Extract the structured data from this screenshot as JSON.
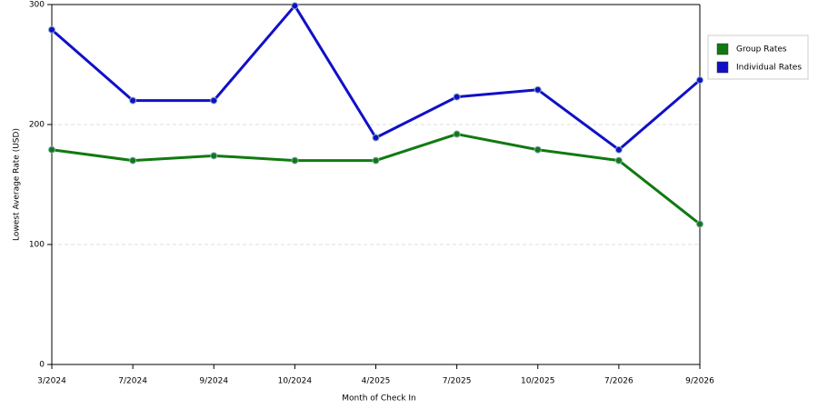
{
  "chart_data": {
    "type": "line",
    "x_label": "Month of Check In",
    "y_label": "Lowest Average Rate (USD)",
    "categories": [
      "3/2024",
      "7/2024",
      "9/2024",
      "10/2024",
      "4/2025",
      "7/2025",
      "10/2025",
      "7/2026",
      "9/2026"
    ],
    "series": [
      {
        "name": "Group Rates",
        "color": "#107a10",
        "values": [
          179,
          170,
          174,
          170,
          170,
          192,
          179,
          170,
          117
        ]
      },
      {
        "name": "Individual Rates",
        "color": "#1010c8",
        "values": [
          279,
          220,
          220,
          299,
          189,
          223,
          229,
          179,
          237
        ]
      }
    ],
    "ylim": [
      0,
      300
    ],
    "yticks": [
      0,
      100,
      200,
      300
    ],
    "grid": true,
    "legend": "right"
  }
}
